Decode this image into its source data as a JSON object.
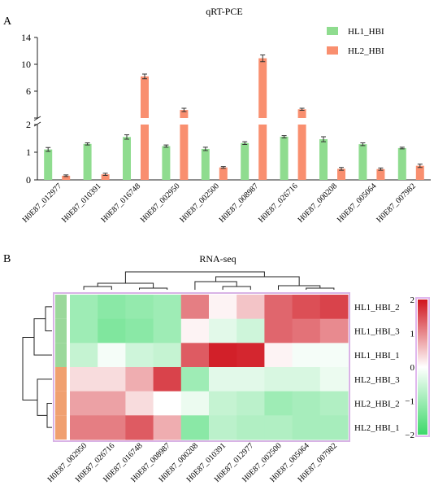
{
  "figure": {
    "panel_a_letter": "A",
    "panel_b_letter": "B"
  },
  "chart_data": [
    {
      "type": "bar",
      "title": "qRT-PCE",
      "xlabel": "",
      "ylabel": "",
      "broken_axis": true,
      "upper_segment": {
        "ylim": [
          2,
          14
        ],
        "ticks": [
          2,
          6,
          10,
          14
        ]
      },
      "lower_segment": {
        "ylim": [
          0,
          2
        ],
        "ticks": [
          0,
          1,
          2
        ]
      },
      "legend_position": "top-right",
      "categories": [
        "H0E87_012977",
        "H0E87_010391",
        "H0E87_016748",
        "H0E87_002950",
        "H0E87_002500",
        "H0E87_008987",
        "H0E87_026716",
        "H0E87_000208",
        "H0E87_005064",
        "H0E87_007982"
      ],
      "series": [
        {
          "name": "HL1_HBI",
          "color": "#8fdc8f",
          "values": [
            1.1,
            1.3,
            1.55,
            1.22,
            1.12,
            1.33,
            1.56,
            1.47,
            1.29,
            1.15
          ],
          "errors": [
            0.07,
            0.04,
            0.08,
            0.04,
            0.06,
            0.05,
            0.04,
            0.09,
            0.05,
            0.03
          ]
        },
        {
          "name": "HL2_HBI",
          "color": "#f98f6f",
          "values": [
            0.15,
            0.2,
            8.2,
            3.2,
            0.45,
            10.9,
            3.3,
            0.4,
            0.39,
            0.51
          ],
          "errors": [
            0.03,
            0.04,
            0.35,
            0.25,
            0.03,
            0.5,
            0.15,
            0.05,
            0.04,
            0.06
          ]
        }
      ]
    },
    {
      "type": "heatmap",
      "title": "RNA-seq",
      "columns": [
        "H0E87_002950",
        "H0E87_026716",
        "H0E87_016748",
        "H0E87_008987",
        "H0E87_000208",
        "H0E87_010391",
        "H0E87_012977",
        "H0E87_002500",
        "H0E87_005064",
        "H0E87_007982"
      ],
      "rows": [
        "HL1_HBI_2",
        "HL1_HBI_3",
        "HL1_HBI_1",
        "HL2_HBI_3",
        "HL2_HBI_2",
        "HL2_HBI_1"
      ],
      "row_group_colors": [
        "#9bd89b",
        "#9bd89b",
        "#9bd89b",
        "#f0a070",
        "#f0a070",
        "#f0a070"
      ],
      "values": [
        [
          -1.0,
          -1.2,
          -1.1,
          -1.0,
          1.1,
          0.1,
          0.5,
          1.3,
          1.5,
          1.6
        ],
        [
          -1.0,
          -1.3,
          -1.2,
          -1.0,
          0.1,
          -0.3,
          -0.5,
          1.3,
          1.2,
          1.0
        ],
        [
          -0.6,
          -0.1,
          -0.5,
          -0.6,
          1.4,
          1.9,
          1.85,
          0.1,
          -0.1,
          -0.1
        ],
        [
          0.3,
          0.3,
          0.7,
          1.6,
          -1.0,
          -0.3,
          -0.3,
          -0.4,
          -0.4,
          -0.2
        ],
        [
          0.8,
          0.8,
          0.3,
          0.0,
          -0.2,
          -0.6,
          -0.7,
          -1.0,
          -0.9,
          -0.8
        ],
        [
          1.1,
          1.1,
          1.4,
          0.7,
          -1.2,
          -0.7,
          -0.8,
          -0.8,
          -0.9,
          -0.9
        ]
      ],
      "color_scale": {
        "min": -2,
        "max": 2,
        "ticks": [
          2,
          1,
          0,
          -1,
          -2
        ],
        "low": "#3cd86a",
        "mid": "#ffffff",
        "high": "#d0141e"
      }
    }
  ]
}
